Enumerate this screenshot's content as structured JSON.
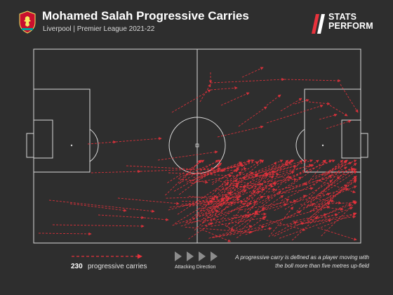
{
  "header": {
    "title": "Mohamed Salah Progressive Carries",
    "subtitle": "Liverpool | Premier League 2021-22",
    "logo_line1": "STATS",
    "logo_line2": "PERFORM"
  },
  "legend": {
    "count": "230",
    "count_label": "progressive carries",
    "direction_label": "Attacking Direction",
    "definition": "A progressive carry is defined as a player moving with the boll more than five metres up-field"
  },
  "colors": {
    "background": "#2e2e2e",
    "pitch_lines": "#d9d9d9",
    "carry": "#e8323c",
    "direction_arrows": "#8c8c8c"
  },
  "icons": {
    "crest": "liverpool-crest-icon",
    "logo": "stats-perform-logo-icon",
    "direction": "play-triangle-icon"
  }
}
